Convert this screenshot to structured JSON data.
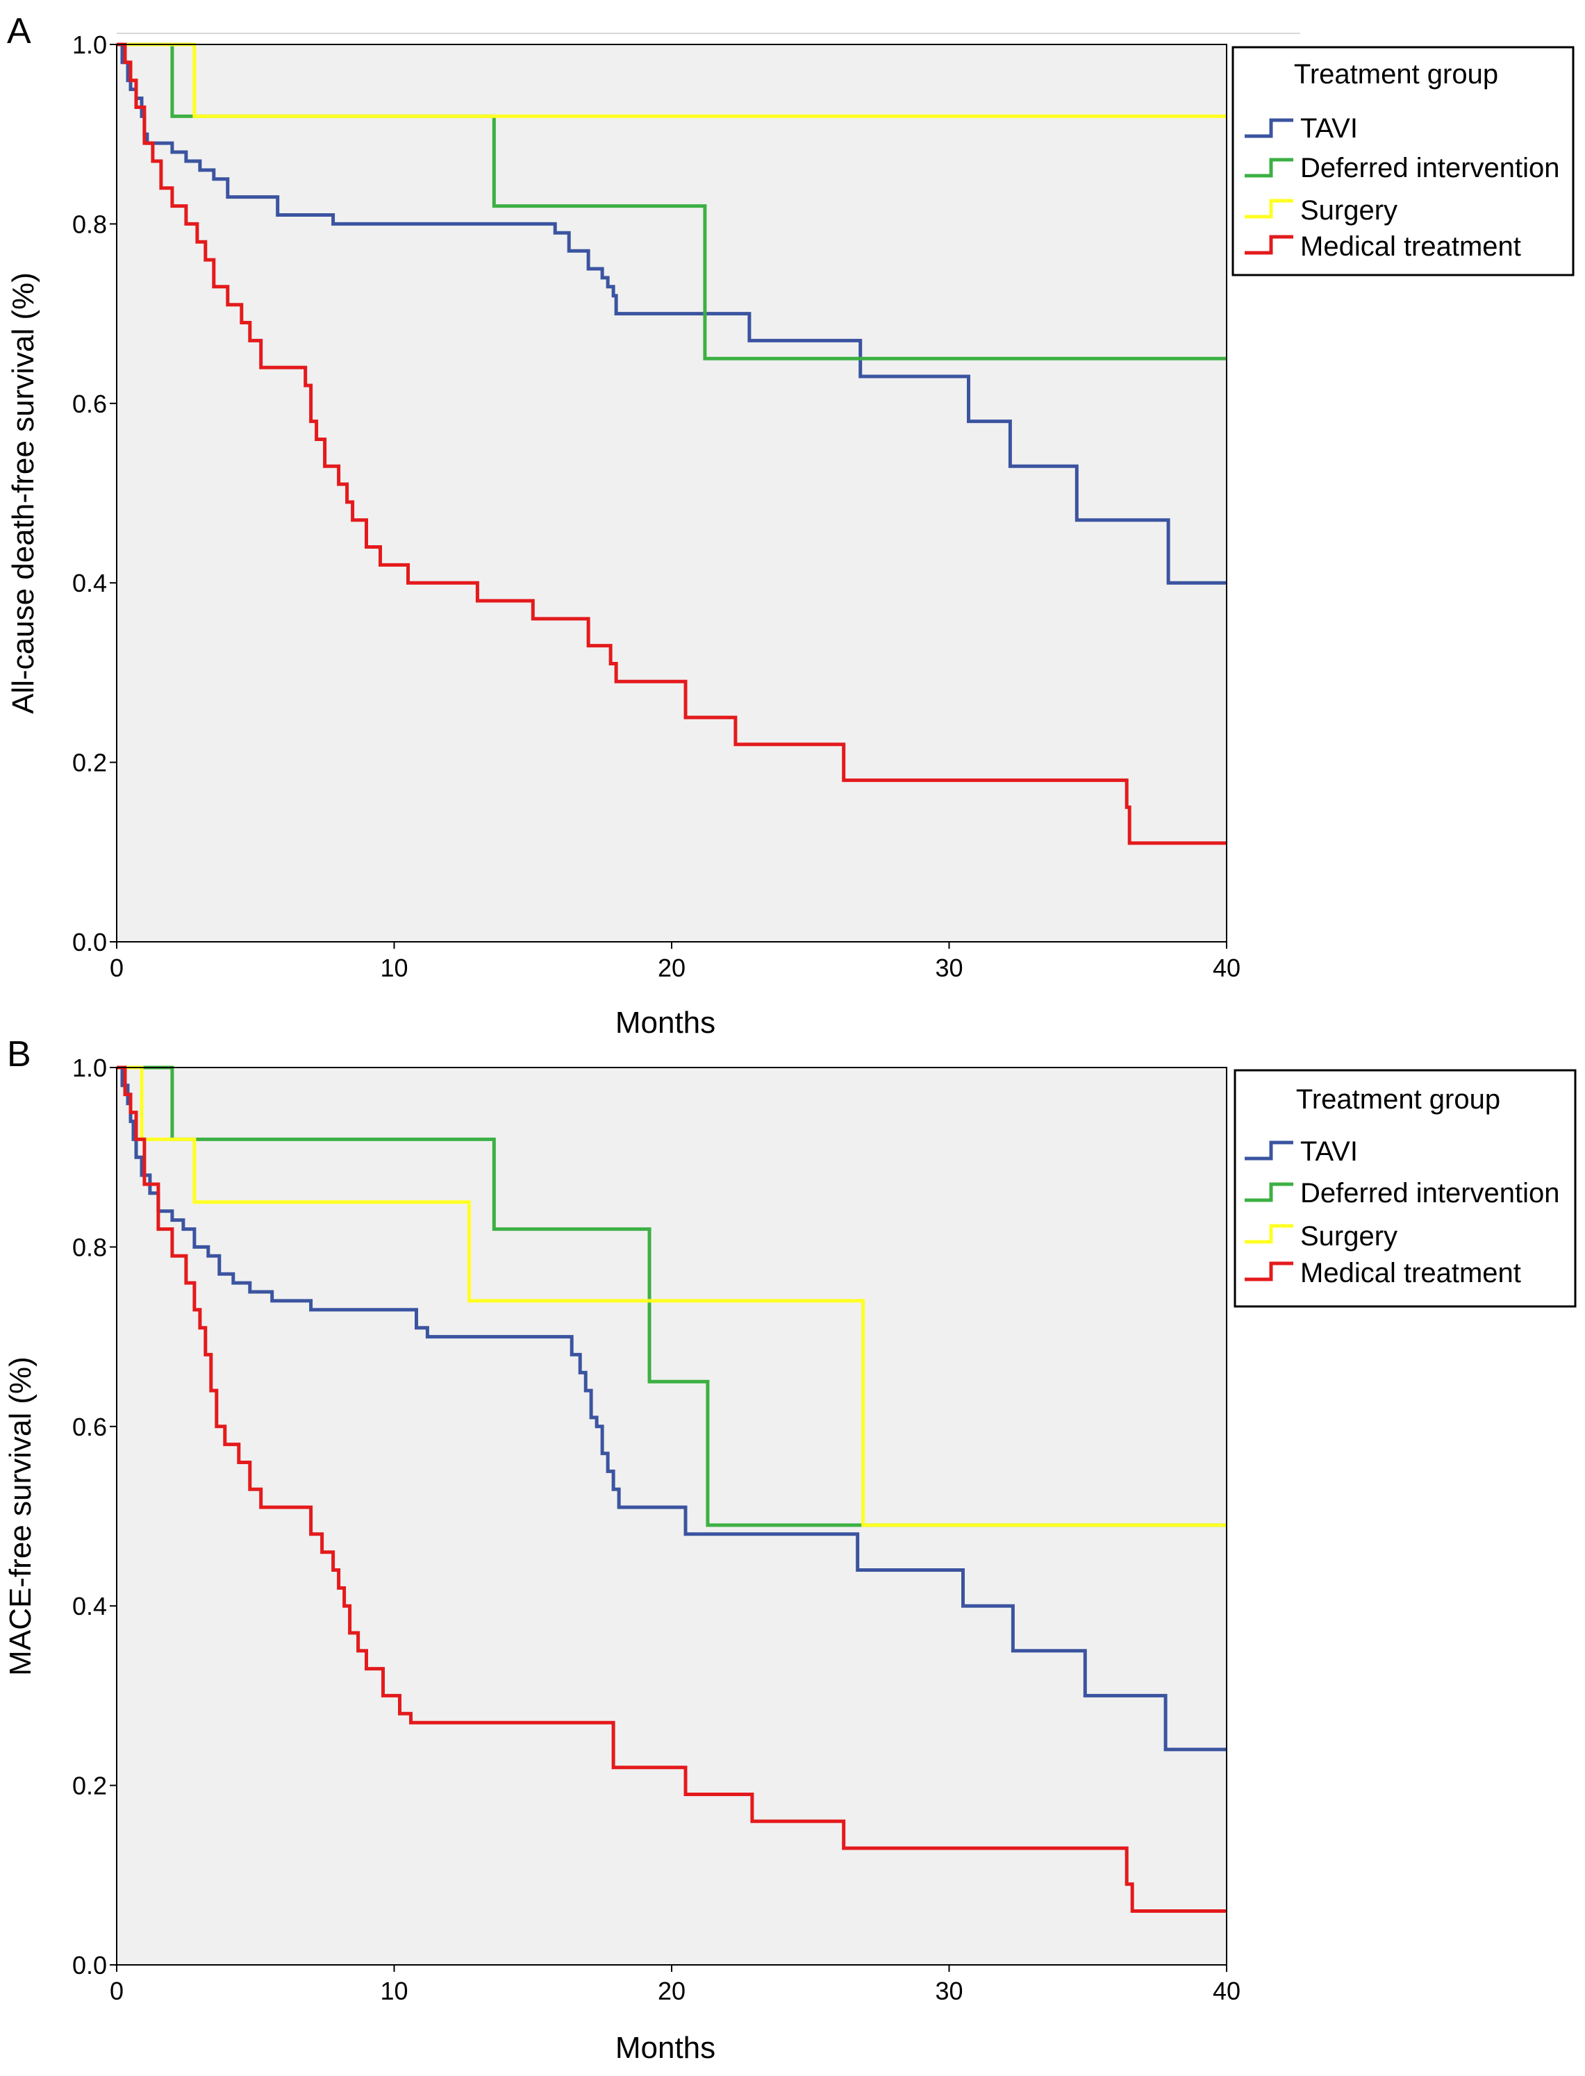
{
  "colors": {
    "plot_bg": "#f0f0f0",
    "frame": "#000000",
    "tavi": "#3b54a0",
    "deferred": "#3cb043",
    "surgery": "#ffff22",
    "medical": "#e41a1c"
  },
  "chart_data": [
    {
      "type": "line",
      "step": true,
      "panel_label": "A",
      "title": "",
      "xlabel": "Months",
      "ylabel": "All-cause death-free survival (%)",
      "xlim": [
        0,
        40
      ],
      "ylim": [
        0,
        1
      ],
      "x_ticks": [
        0,
        10,
        20,
        30,
        40
      ],
      "x_tick_labels": [
        "0",
        "10",
        "20",
        "30",
        "40"
      ],
      "y_ticks": [
        0,
        0.2,
        0.4,
        0.6,
        0.8,
        1.0
      ],
      "y_tick_labels": [
        "0.0",
        "0.2",
        "0.4",
        "0.6",
        "0.8",
        "1.0"
      ],
      "legend_title": "Treatment group",
      "legend_position": "right, outside plot, top",
      "series": [
        {
          "name": "TAVI",
          "color": "#3b54a0",
          "x": [
            0,
            0.2,
            0.4,
            0.5,
            0.7,
            0.9,
            1.0,
            1.1,
            1.3,
            2.0,
            2.5,
            3.0,
            3.5,
            4.0,
            5.8,
            7.8,
            15.8,
            16.3,
            17.0,
            17.5,
            17.7,
            17.9,
            18.0,
            22.8,
            26.8,
            30.7,
            32.2,
            34.6,
            37.9
          ],
          "values": [
            1.0,
            0.98,
            0.96,
            0.95,
            0.94,
            0.92,
            0.9,
            0.89,
            0.89,
            0.88,
            0.87,
            0.86,
            0.85,
            0.83,
            0.81,
            0.8,
            0.79,
            0.77,
            0.75,
            0.74,
            0.73,
            0.72,
            0.7,
            0.67,
            0.63,
            0.58,
            0.53,
            0.47,
            0.4
          ]
        },
        {
          "name": "Deferred intervention",
          "color": "#3cb043",
          "x": [
            0,
            2.0,
            13.6,
            21.2
          ],
          "values": [
            1.0,
            0.92,
            0.82,
            0.65
          ]
        },
        {
          "name": "Surgery",
          "color": "#ffff22",
          "x": [
            0,
            2.8
          ],
          "values": [
            1.0,
            0.92
          ]
        },
        {
          "name": "Medical treatment",
          "color": "#e41a1c",
          "x": [
            0,
            0.3,
            0.5,
            0.7,
            1.0,
            1.3,
            1.6,
            2.0,
            2.5,
            2.9,
            3.2,
            3.5,
            4.0,
            4.5,
            4.8,
            5.2,
            6.8,
            7.0,
            7.2,
            7.5,
            8.0,
            8.3,
            8.5,
            9.0,
            9.5,
            10.5,
            13.0,
            15.0,
            17.0,
            17.8,
            18.0,
            20.5,
            22.3,
            26.2,
            36.4,
            36.5
          ],
          "values": [
            1.0,
            0.98,
            0.96,
            0.93,
            0.89,
            0.87,
            0.84,
            0.82,
            0.8,
            0.78,
            0.76,
            0.73,
            0.71,
            0.69,
            0.67,
            0.64,
            0.62,
            0.58,
            0.56,
            0.53,
            0.51,
            0.49,
            0.47,
            0.44,
            0.42,
            0.4,
            0.38,
            0.36,
            0.33,
            0.31,
            0.29,
            0.25,
            0.22,
            0.18,
            0.15,
            0.11
          ]
        }
      ]
    },
    {
      "type": "line",
      "step": true,
      "panel_label": "B",
      "title": "",
      "xlabel": "Months",
      "ylabel": "MACE-free survival (%)",
      "xlim": [
        0,
        40
      ],
      "ylim": [
        0,
        1
      ],
      "x_ticks": [
        0,
        10,
        20,
        30,
        40
      ],
      "x_tick_labels": [
        "0",
        "10",
        "20",
        "30",
        "40"
      ],
      "y_ticks": [
        0,
        0.2,
        0.4,
        0.6,
        0.8,
        1.0
      ],
      "y_tick_labels": [
        "0.0",
        "0.2",
        "0.4",
        "0.6",
        "0.8",
        "1.0"
      ],
      "legend_title": "Treatment group",
      "legend_position": "right, outside plot, top",
      "series": [
        {
          "name": "TAVI",
          "color": "#3b54a0",
          "x": [
            0,
            0.2,
            0.4,
            0.5,
            0.6,
            0.7,
            0.9,
            1.2,
            1.5,
            2.0,
            2.4,
            2.8,
            3.3,
            3.7,
            4.2,
            4.8,
            5.6,
            7.0,
            10.8,
            11.2,
            16.4,
            16.7,
            16.9,
            17.1,
            17.3,
            17.5,
            17.7,
            17.9,
            18.1,
            20.5,
            26.7,
            30.5,
            32.3,
            34.9,
            37.8
          ],
          "values": [
            1.0,
            0.98,
            0.96,
            0.94,
            0.92,
            0.9,
            0.88,
            0.86,
            0.84,
            0.83,
            0.82,
            0.8,
            0.79,
            0.77,
            0.76,
            0.75,
            0.74,
            0.73,
            0.71,
            0.7,
            0.68,
            0.66,
            0.64,
            0.61,
            0.6,
            0.57,
            0.55,
            0.53,
            0.51,
            0.48,
            0.44,
            0.4,
            0.35,
            0.3,
            0.24
          ]
        },
        {
          "name": "Deferred intervention",
          "color": "#3cb043",
          "x": [
            0,
            2.0,
            13.6,
            19.2,
            21.3
          ],
          "values": [
            1.0,
            0.92,
            0.82,
            0.65,
            0.49
          ]
        },
        {
          "name": "Surgery",
          "color": "#ffff22",
          "x": [
            0,
            0.9,
            2.8,
            12.7,
            26.9
          ],
          "values": [
            1.0,
            0.92,
            0.85,
            0.74,
            0.49
          ]
        },
        {
          "name": "Medical treatment",
          "color": "#e41a1c",
          "x": [
            0,
            0.3,
            0.5,
            0.7,
            1.0,
            1.5,
            2.0,
            2.5,
            2.8,
            3.0,
            3.2,
            3.4,
            3.6,
            3.9,
            4.4,
            4.8,
            5.2,
            7.0,
            7.4,
            7.8,
            8.0,
            8.2,
            8.4,
            8.7,
            9.0,
            9.6,
            10.2,
            10.6,
            17.9,
            20.5,
            22.9,
            26.2,
            36.4,
            36.6
          ],
          "values": [
            1.0,
            0.97,
            0.95,
            0.92,
            0.87,
            0.82,
            0.79,
            0.76,
            0.73,
            0.71,
            0.68,
            0.64,
            0.6,
            0.58,
            0.56,
            0.53,
            0.51,
            0.48,
            0.46,
            0.44,
            0.42,
            0.4,
            0.37,
            0.35,
            0.33,
            0.3,
            0.28,
            0.27,
            0.22,
            0.19,
            0.16,
            0.13,
            0.09,
            0.06
          ]
        }
      ]
    }
  ]
}
